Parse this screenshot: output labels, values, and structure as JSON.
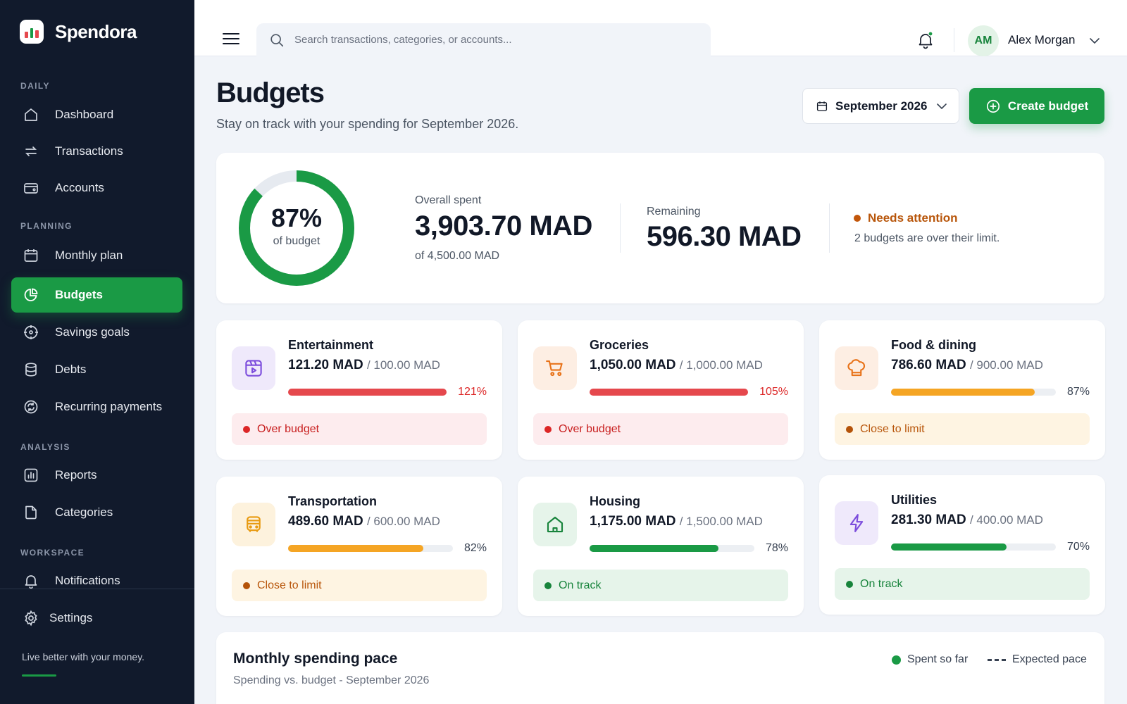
{
  "app": {
    "name": "Spendora"
  },
  "sidebar": {
    "sections": {
      "daily": "DAILY",
      "planning": "PLANNING",
      "analysis": "ANALYSIS",
      "workspace": "WORKSPACE"
    },
    "items": {
      "dashboard": "Dashboard",
      "transactions": "Transactions",
      "accounts": "Accounts",
      "monthly_plan": "Monthly plan",
      "budgets": "Budgets",
      "savings_goals": "Savings goals",
      "debts": "Debts",
      "recurring": "Recurring payments",
      "reports": "Reports",
      "categories": "Categories",
      "notifications": "Notifications",
      "settings": "Settings"
    },
    "active": "Budgets",
    "tagline": "Live better with your money."
  },
  "topbar": {
    "search_placeholder": "Search transactions, categories, or accounts...",
    "user": {
      "initials": "AM",
      "name": "Alex Morgan"
    },
    "notifications_unread": true
  },
  "page": {
    "title": "Budgets",
    "subtitle": "Stay on track with your spending for September 2026.",
    "month": "September 2026",
    "create_label": "Create budget"
  },
  "summary": {
    "percent_label": "87%",
    "percent_value": 0.87,
    "percent_caption": "of budget",
    "spent_label": "Overall spent",
    "spent_amount": "3,903.70 MAD",
    "spent_of": "of 4,500.00 MAD",
    "remaining_label": "Remaining",
    "remaining_amount": "596.30 MAD",
    "attention_title": "Needs attention",
    "attention_text": "2 budgets are over their limit."
  },
  "budgets": [
    {
      "name": "Entertainment",
      "icon": "entertainment-icon",
      "spent": "121.20 MAD",
      "limit": "/ 100.00 MAD",
      "percent": "121%",
      "ratio": 1.21,
      "status": "Over budget"
    },
    {
      "name": "Groceries",
      "icon": "cart-icon",
      "spent": "1,050.00 MAD",
      "limit": "/ 1,000.00 MAD",
      "percent": "105%",
      "ratio": 1.05,
      "status": "Over budget"
    },
    {
      "name": "Food & dining",
      "icon": "chef-hat-icon",
      "spent": "786.60 MAD",
      "limit": "/ 900.00 MAD",
      "percent": "87%",
      "ratio": 0.87,
      "status": "Close to limit"
    },
    {
      "name": "Transportation",
      "icon": "bus-icon",
      "spent": "489.60 MAD",
      "limit": "/ 600.00 MAD",
      "percent": "82%",
      "ratio": 0.82,
      "status": "Close to limit"
    },
    {
      "name": "Housing",
      "icon": "house-icon",
      "spent": "1,175.00 MAD",
      "limit": "/ 1,500.00 MAD",
      "percent": "78%",
      "ratio": 0.78,
      "status": "On track"
    },
    {
      "name": "Utilities",
      "icon": "lightning-icon",
      "spent": "281.30 MAD",
      "limit": "/ 400.00 MAD",
      "percent": "70%",
      "ratio": 0.7,
      "status": "On track"
    }
  ],
  "pace": {
    "title": "Monthly spending pace",
    "subtitle": "Spending vs. budget - September 2026",
    "legend_spent": "Spent so far",
    "legend_expected": "Expected pace"
  },
  "colors": {
    "accent": "#1a9a45",
    "sidebar_bg": "#111a2c",
    "over": "#e5484d",
    "close": "#f5a524",
    "on_track": "#1a9a45",
    "attention": "#c2560a"
  }
}
